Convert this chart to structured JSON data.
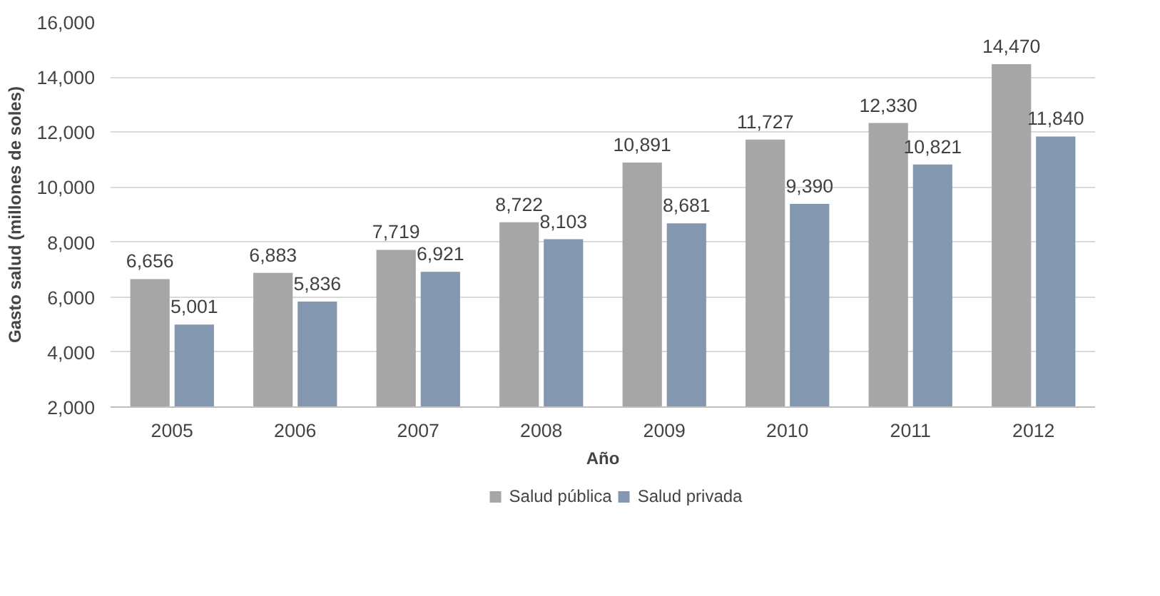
{
  "chart_data": {
    "type": "bar",
    "xlabel": "Año",
    "ylabel": "Gasto salud (millones de soles)",
    "categories": [
      "2005",
      "2006",
      "2007",
      "2008",
      "2009",
      "2010",
      "2011",
      "2012"
    ],
    "series": [
      {
        "name": "Salud pública",
        "color": "#a6a6a6",
        "values": [
          6656,
          6883,
          7719,
          8722,
          10891,
          11727,
          12330,
          14470
        ],
        "value_labels": [
          "6,656",
          "6,883",
          "7,719",
          "8,722",
          "10,891",
          "11,727",
          "12,330",
          "14,470"
        ]
      },
      {
        "name": "Salud privada",
        "color": "#8497b0",
        "values": [
          5001,
          5836,
          6921,
          8103,
          8681,
          9390,
          10821,
          11840
        ],
        "value_labels": [
          "5,001",
          "5,836",
          "6,921",
          "8,103",
          "8,681",
          "9,390",
          "10,821",
          "11,840"
        ]
      }
    ],
    "ylim": [
      2000,
      16000
    ],
    "yticks": [
      {
        "value": 2000,
        "label": "2,000"
      },
      {
        "value": 4000,
        "label": "4,000"
      },
      {
        "value": 6000,
        "label": "6,000"
      },
      {
        "value": 8000,
        "label": "8,000"
      },
      {
        "value": 10000,
        "label": "10,000"
      },
      {
        "value": 12000,
        "label": "12,000"
      },
      {
        "value": 14000,
        "label": "14,000"
      },
      {
        "value": 16000,
        "label": "16,000"
      }
    ],
    "grid": "y",
    "legend": "bottom"
  }
}
